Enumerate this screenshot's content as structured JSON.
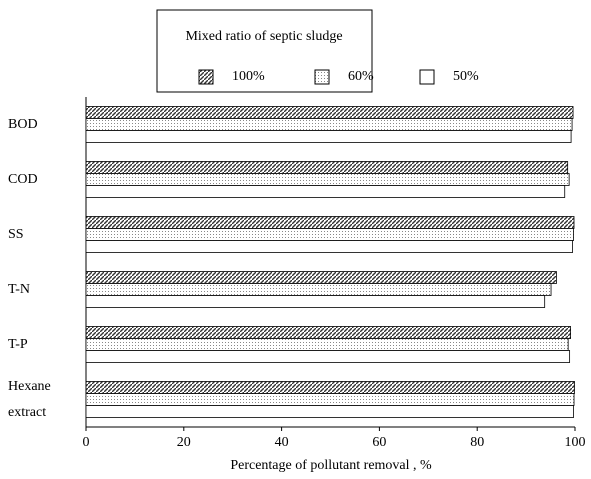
{
  "chart_data": {
    "type": "hbar",
    "legend_title": "Mixed ratio of septic sludge",
    "xlabel": "Percentage of pollutant removal , %",
    "categories": [
      "BOD",
      "COD",
      "SS",
      "T-N",
      "T-P",
      "Hexane extract"
    ],
    "series": [
      {
        "name": "100%",
        "color": "#333333",
        "values": [
          99.6,
          98.5,
          99.8,
          96.2,
          99.1,
          99.9
        ]
      },
      {
        "name": "60%",
        "color": "#888888",
        "values": [
          99.4,
          98.8,
          99.7,
          95.1,
          98.6,
          99.8
        ]
      },
      {
        "name": "50%",
        "color": "#ffffff",
        "values": [
          99.2,
          97.9,
          99.5,
          93.8,
          98.9,
          99.7
        ]
      }
    ],
    "xlim": [
      0,
      100
    ],
    "xticks": [
      0,
      20,
      40,
      60,
      80,
      100
    ],
    "legend": "top"
  }
}
